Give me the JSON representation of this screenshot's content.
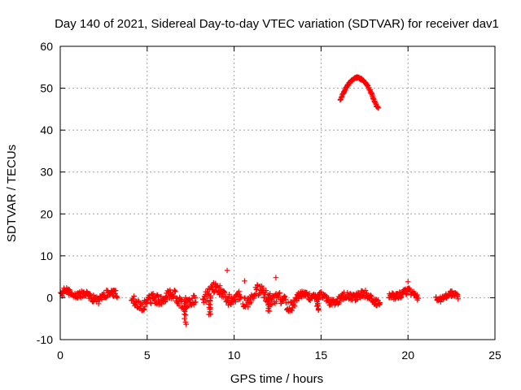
{
  "chart_data": {
    "type": "scatter",
    "title": "Day 140 of 2021, Sidereal Day-to-day VTEC variation (SDTVAR) for receiver dav1",
    "xlabel": "GPS time / hours",
    "ylabel": "SDTVAR / TECUs",
    "xlim": [
      0,
      25
    ],
    "ylim": [
      -10,
      60
    ],
    "xticks": [
      0,
      5,
      10,
      15,
      20,
      25
    ],
    "yticks": [
      -10,
      0,
      10,
      20,
      30,
      40,
      50,
      60
    ],
    "grid": true,
    "marker": "+",
    "colors": {
      "series": "#ff0000",
      "grid": "#a0a0a0",
      "axis": "#000000"
    },
    "segments": [
      {
        "x_start": 0.0,
        "x_end": 3.3,
        "y_center": 0.6,
        "spread": 1.6
      },
      {
        "x_start": 4.1,
        "x_end": 7.8,
        "y_center": -0.5,
        "spread": 2.2
      },
      {
        "x_start": 8.2,
        "x_end": 10.4,
        "y_center": 0.5,
        "spread": 2.6
      },
      {
        "x_start": 10.5,
        "x_end": 13.6,
        "y_center": 0.0,
        "spread": 2.6
      },
      {
        "x_start": 13.6,
        "x_end": 18.4,
        "y_center": 0.0,
        "spread": 1.6
      },
      {
        "x_start": 18.9,
        "x_end": 20.6,
        "y_center": 0.5,
        "spread": 1.4
      },
      {
        "x_start": 21.6,
        "x_end": 22.9,
        "y_center": 0.0,
        "spread": 1.2
      }
    ],
    "dips": [
      {
        "x": 7.2,
        "y": -6.2
      },
      {
        "x": 8.6,
        "y": -4.2
      },
      {
        "x": 12.0,
        "y": -3.3
      },
      {
        "x": 14.8,
        "y": -3.0
      }
    ],
    "outliers": [
      {
        "x": 9.6,
        "y": 6.5
      },
      {
        "x": 10.6,
        "y": 4.0
      },
      {
        "x": 12.4,
        "y": 4.8
      },
      {
        "x": 20.0,
        "y": 3.8
      }
    ],
    "arc": [
      {
        "x": 16.1,
        "y": 47.0
      },
      {
        "x": 16.2,
        "y": 48.2
      },
      {
        "x": 16.3,
        "y": 49.0
      },
      {
        "x": 16.4,
        "y": 49.8
      },
      {
        "x": 16.5,
        "y": 50.5
      },
      {
        "x": 16.6,
        "y": 51.1
      },
      {
        "x": 16.7,
        "y": 51.6
      },
      {
        "x": 16.8,
        "y": 52.0
      },
      {
        "x": 16.9,
        "y": 52.3
      },
      {
        "x": 17.0,
        "y": 52.5
      },
      {
        "x": 17.1,
        "y": 52.5
      },
      {
        "x": 17.2,
        "y": 52.4
      },
      {
        "x": 17.3,
        "y": 52.2
      },
      {
        "x": 17.4,
        "y": 51.9
      },
      {
        "x": 17.5,
        "y": 51.5
      },
      {
        "x": 17.6,
        "y": 51.0
      },
      {
        "x": 17.7,
        "y": 50.4
      },
      {
        "x": 17.8,
        "y": 49.6
      },
      {
        "x": 17.9,
        "y": 48.7
      },
      {
        "x": 18.0,
        "y": 47.6
      },
      {
        "x": 18.1,
        "y": 46.6
      },
      {
        "x": 18.2,
        "y": 45.7
      },
      {
        "x": 18.3,
        "y": 45.3
      }
    ]
  }
}
